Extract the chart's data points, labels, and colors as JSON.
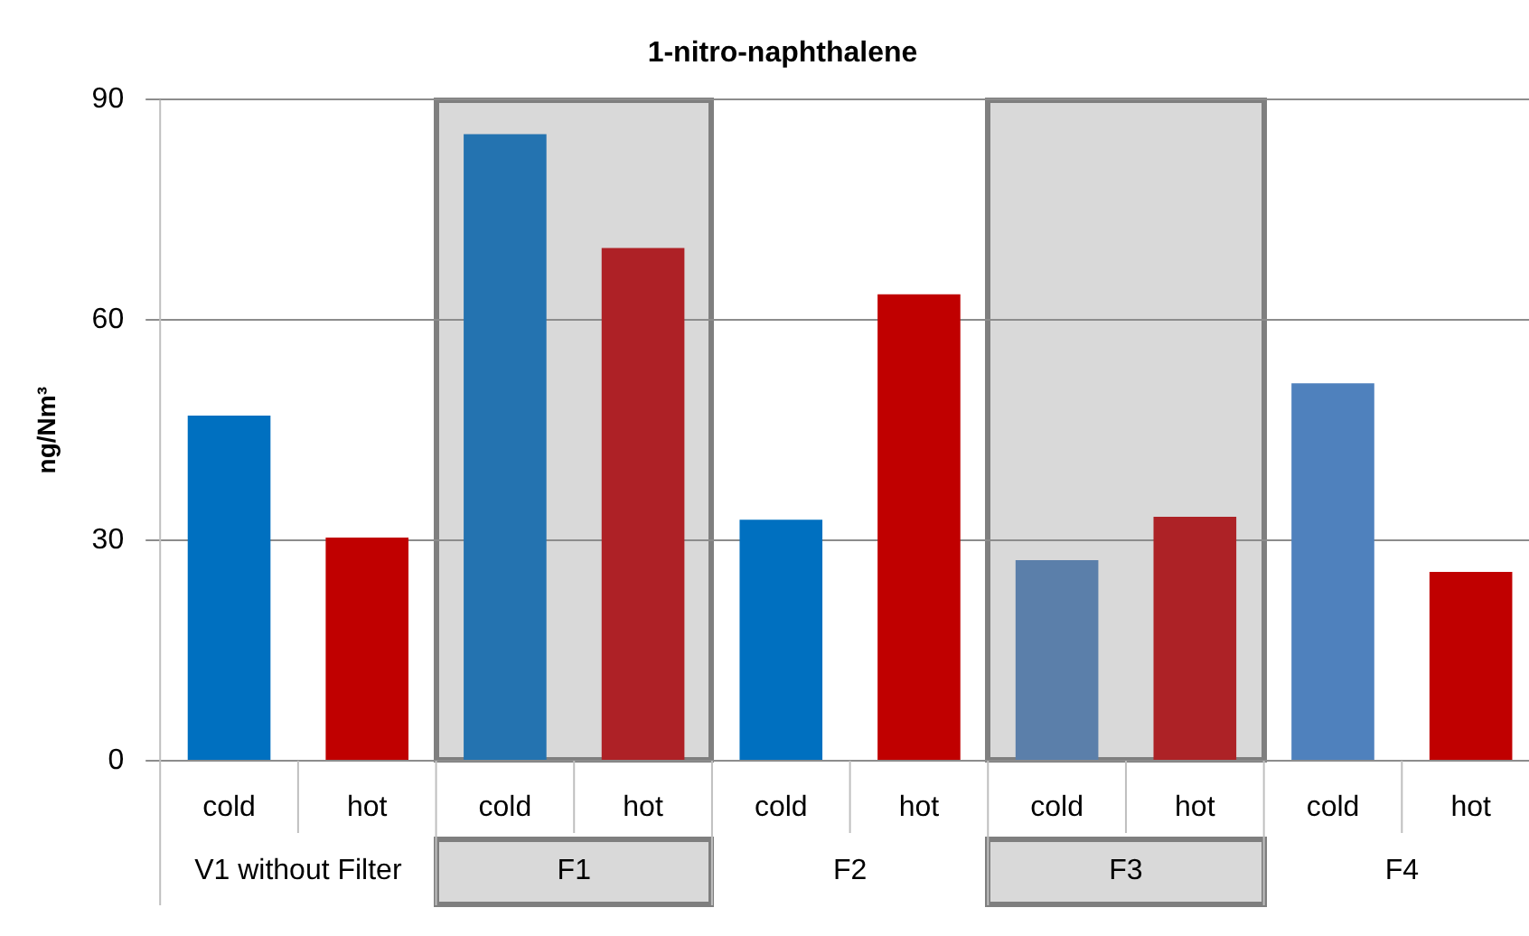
{
  "chart_data": {
    "type": "bar",
    "title": "1-nitro-naphthalene",
    "ylabel": "ng/Nm³",
    "categories": [
      "cold",
      "hot",
      "cold",
      "hot",
      "cold",
      "hot",
      "cold",
      "hot",
      "cold",
      "hot"
    ],
    "values": [
      47,
      30.4,
      85.3,
      69.8,
      32.8,
      63.5,
      27.3,
      33.2,
      51.4,
      25.7
    ],
    "colors": [
      "#0070c0",
      "#c00000",
      "#2473b0",
      "#ae2126",
      "#0070c0",
      "#c00000",
      "#5b7faa",
      "#ad2226",
      "#4f81bd",
      "#c00000"
    ],
    "ylim": [
      0,
      90
    ],
    "yticks": [
      0,
      30,
      60,
      90
    ],
    "grid": "y",
    "legend": false,
    "annotations": [
      "V1 without Filter",
      "F1",
      "F2",
      "F3",
      "F4"
    ]
  }
}
